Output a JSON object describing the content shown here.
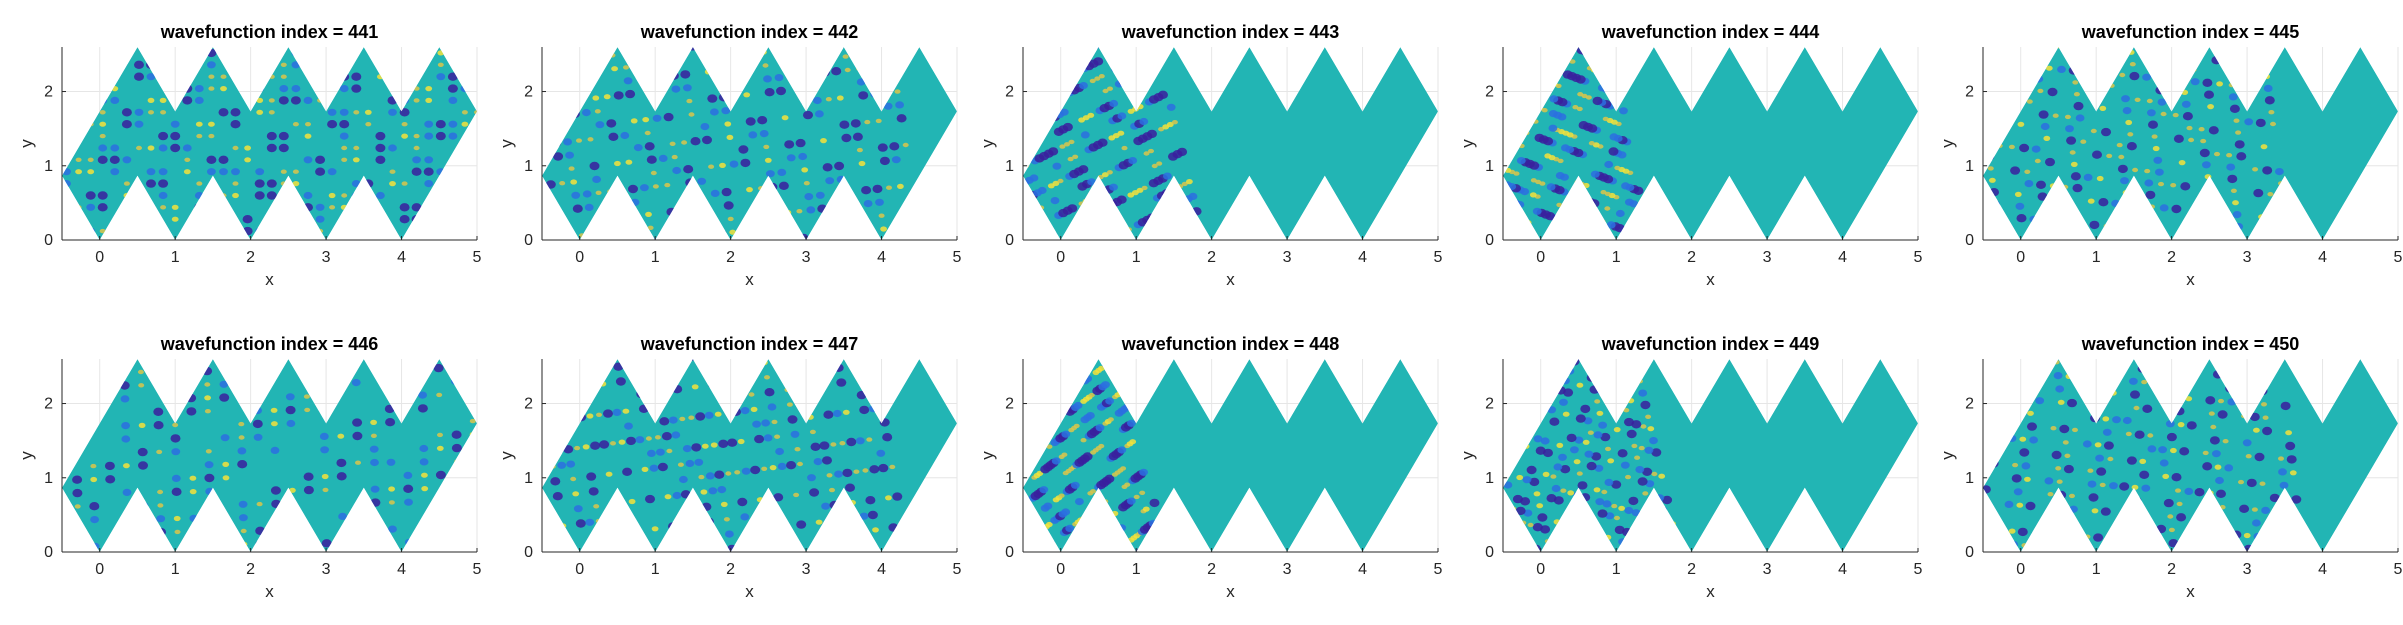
{
  "figure": {
    "colors": {
      "background_field": "#22b5b4",
      "low": "#3a1f9e",
      "mid_low": "#2c6fe0",
      "high": "#d9c64a",
      "peak": "#f5e23a",
      "axis": "#262626",
      "grid": "#e6e6e6"
    }
  },
  "chart_data": [
    {
      "type": "heatmap",
      "title": "wavefunction index = 441",
      "xlabel": "x",
      "ylabel": "y",
      "xlim": [
        -0.5,
        5
      ],
      "ylim": [
        0,
        2.6
      ],
      "xticks": [
        "0",
        "1",
        "2",
        "3",
        "4",
        "5"
      ],
      "yticks": [
        "0",
        "1",
        "2"
      ],
      "grid": true,
      "domain": "zigzag strip of rhombi",
      "index": 441
    },
    {
      "type": "heatmap",
      "title": "wavefunction index = 442",
      "xlabel": "x",
      "ylabel": "y",
      "xlim": [
        -0.5,
        5
      ],
      "ylim": [
        0,
        2.6
      ],
      "xticks": [
        "0",
        "1",
        "2",
        "3",
        "4",
        "5"
      ],
      "yticks": [
        "0",
        "1",
        "2"
      ],
      "grid": true,
      "domain": "zigzag strip of rhombi",
      "index": 442
    },
    {
      "type": "heatmap",
      "title": "wavefunction index = 443",
      "xlabel": "x",
      "ylabel": "y",
      "xlim": [
        -0.5,
        5
      ],
      "ylim": [
        0,
        2.6
      ],
      "xticks": [
        "0",
        "1",
        "2",
        "3",
        "4",
        "5"
      ],
      "yticks": [
        "0",
        "1",
        "2"
      ],
      "grid": true,
      "domain": "zigzag strip of rhombi",
      "index": 443
    },
    {
      "type": "heatmap",
      "title": "wavefunction index = 444",
      "xlabel": "x",
      "ylabel": "y",
      "xlim": [
        -0.5,
        5
      ],
      "ylim": [
        0,
        2.6
      ],
      "xticks": [
        "0",
        "1",
        "2",
        "3",
        "4",
        "5"
      ],
      "yticks": [
        "0",
        "1",
        "2"
      ],
      "grid": true,
      "domain": "zigzag strip of rhombi",
      "index": 444
    },
    {
      "type": "heatmap",
      "title": "wavefunction index = 445",
      "xlabel": "x",
      "ylabel": "y",
      "xlim": [
        -0.5,
        5
      ],
      "ylim": [
        0,
        2.6
      ],
      "xticks": [
        "0",
        "1",
        "2",
        "3",
        "4",
        "5"
      ],
      "yticks": [
        "0",
        "1",
        "2"
      ],
      "grid": true,
      "domain": "zigzag strip of rhombi",
      "index": 445
    },
    {
      "type": "heatmap",
      "title": "wavefunction index = 446",
      "xlabel": "x",
      "ylabel": "y",
      "xlim": [
        -0.5,
        5
      ],
      "ylim": [
        0,
        2.6
      ],
      "xticks": [
        "0",
        "1",
        "2",
        "3",
        "4",
        "5"
      ],
      "yticks": [
        "0",
        "1",
        "2"
      ],
      "grid": true,
      "domain": "zigzag strip of rhombi",
      "index": 446
    },
    {
      "type": "heatmap",
      "title": "wavefunction index = 447",
      "xlabel": "x",
      "ylabel": "y",
      "xlim": [
        -0.5,
        5
      ],
      "ylim": [
        0,
        2.6
      ],
      "xticks": [
        "0",
        "1",
        "2",
        "3",
        "4",
        "5"
      ],
      "yticks": [
        "0",
        "1",
        "2"
      ],
      "grid": true,
      "domain": "zigzag strip of rhombi",
      "index": 447
    },
    {
      "type": "heatmap",
      "title": "wavefunction index = 448",
      "xlabel": "x",
      "ylabel": "y",
      "xlim": [
        -0.5,
        5
      ],
      "ylim": [
        0,
        2.6
      ],
      "xticks": [
        "0",
        "1",
        "2",
        "3",
        "4",
        "5"
      ],
      "yticks": [
        "0",
        "1",
        "2"
      ],
      "grid": true,
      "domain": "zigzag strip of rhombi",
      "index": 448
    },
    {
      "type": "heatmap",
      "title": "wavefunction index = 449",
      "xlabel": "x",
      "ylabel": "y",
      "xlim": [
        -0.5,
        5
      ],
      "ylim": [
        0,
        2.6
      ],
      "xticks": [
        "0",
        "1",
        "2",
        "3",
        "4",
        "5"
      ],
      "yticks": [
        "0",
        "1",
        "2"
      ],
      "grid": true,
      "domain": "zigzag strip of rhombi",
      "index": 449
    },
    {
      "type": "heatmap",
      "title": "wavefunction index = 450",
      "xlabel": "x",
      "ylabel": "y",
      "xlim": [
        -0.5,
        5
      ],
      "ylim": [
        0,
        2.6
      ],
      "xticks": [
        "0",
        "1",
        "2",
        "3",
        "4",
        "5"
      ],
      "yticks": [
        "0",
        "1",
        "2"
      ],
      "grid": true,
      "domain": "zigzag strip of rhombi",
      "index": 450
    }
  ]
}
